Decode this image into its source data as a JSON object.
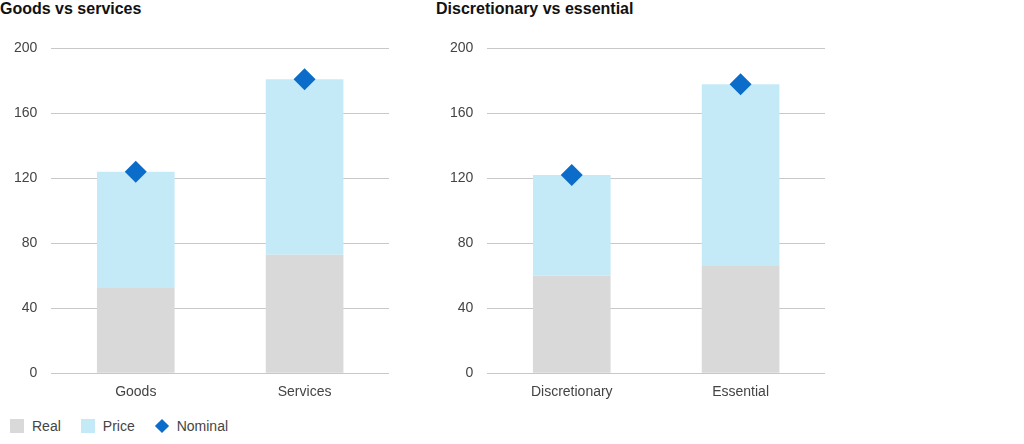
{
  "chart_data": [
    {
      "type": "bar",
      "title": "Goods vs services",
      "stacked": true,
      "grid": true,
      "categories": [
        "Goods",
        "Services"
      ],
      "ylim": [
        0,
        200
      ],
      "yticks": [
        0,
        40,
        80,
        120,
        160,
        200
      ],
      "series": [
        {
          "name": "Real",
          "type": "bar",
          "color": "#d9d9d9",
          "values": [
            53,
            73
          ]
        },
        {
          "name": "Price",
          "type": "bar",
          "color": "#c5eaf7",
          "values": [
            71,
            108
          ]
        },
        {
          "name": "Nominal",
          "type": "scatter",
          "marker": "diamond",
          "color": "#0b6cc9",
          "values": [
            124,
            181
          ]
        }
      ]
    },
    {
      "type": "bar",
      "title": "Discretionary vs essential",
      "stacked": true,
      "grid": true,
      "categories": [
        "Discretionary",
        "Essential"
      ],
      "ylim": [
        0,
        200
      ],
      "yticks": [
        0,
        40,
        80,
        120,
        160,
        200
      ],
      "series": [
        {
          "name": "Real",
          "type": "bar",
          "color": "#d9d9d9",
          "values": [
            60,
            66
          ]
        },
        {
          "name": "Price",
          "type": "bar",
          "color": "#c5eaf7",
          "values": [
            62,
            112
          ]
        },
        {
          "name": "Nominal",
          "type": "scatter",
          "marker": "diamond",
          "color": "#0b6cc9",
          "values": [
            122,
            178
          ]
        }
      ]
    }
  ]
}
